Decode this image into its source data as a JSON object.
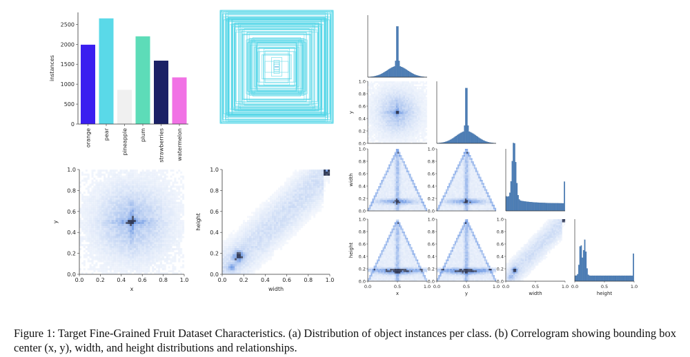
{
  "caption": "Figure 1: Target Fine-Grained Fruit Dataset Characteristics. (a) Distribution of object instances per class. (b) Correlogram showing bounding box center (x, y), width, and height distributions and relationships.",
  "chart_data": [
    {
      "type": "bar",
      "ylabel": "instances",
      "categories": [
        "orange",
        "pear",
        "pineapple",
        "plum",
        "strawberries",
        "watermelon"
      ],
      "values": [
        1990,
        2650,
        860,
        2200,
        1590,
        1170
      ],
      "colors": [
        "#3a1ff0",
        "#5ad9e8",
        "#f0f0f0",
        "#5ddcb8",
        "#1b2166",
        "#f172e5"
      ],
      "ylim": [
        0,
        2800
      ],
      "yticks": [
        0,
        500,
        1000,
        1500,
        2000,
        2500
      ]
    },
    {
      "type": "other",
      "description_color": "#4fd5e6"
    },
    {
      "type": "heatmap",
      "xlabel": "x",
      "ylabel": "y",
      "xlim": [
        0,
        1
      ],
      "ylim": [
        0,
        1
      ],
      "xticks": [
        "0.0",
        "0.2",
        "0.4",
        "0.6",
        "0.8",
        "1.0"
      ],
      "yticks": [
        "0.0",
        "0.2",
        "0.4",
        "0.6",
        "0.8",
        "1.0"
      ]
    },
    {
      "type": "heatmap",
      "xlabel": "width",
      "ylabel": "height",
      "xlim": [
        0,
        1
      ],
      "ylim": [
        0,
        1
      ],
      "xticks": [
        "0.0",
        "0.2",
        "0.4",
        "0.6",
        "0.8",
        "1.0"
      ],
      "yticks": [
        "0.0",
        "0.2",
        "0.4",
        "0.6",
        "0.8",
        "1.0"
      ]
    },
    {
      "type": "heatmap",
      "variables": [
        "x",
        "y",
        "width",
        "height"
      ],
      "ticks": [
        "0.0",
        "0.2",
        "0.4",
        "0.6",
        "0.8",
        "1.0"
      ],
      "xticks_bottom": [
        "0.0",
        "0.5",
        "1.0"
      ],
      "color": "#4a7db8"
    }
  ]
}
